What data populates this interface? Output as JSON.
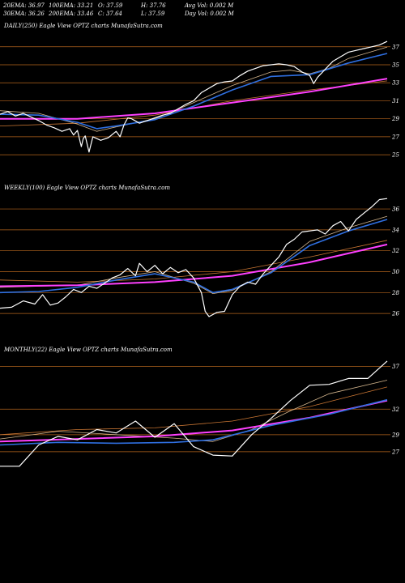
{
  "header": {
    "row1": [
      {
        "label": "20EMA: 36.97"
      },
      {
        "label": "100EMA: 33.21"
      },
      {
        "label": "O: 37.59"
      },
      {
        "label": "H: 37.76"
      },
      {
        "label": "Avg Vol: 0.002  M"
      }
    ],
    "row2": [
      {
        "label": "30EMA: 36.26"
      },
      {
        "label": "200EMA: 33.46"
      },
      {
        "label": "C: 37.64"
      },
      {
        "label": "L: 37.59"
      },
      {
        "label": "Day Vol: 0.002  M"
      }
    ]
  },
  "colors": {
    "background": "#000000",
    "price": "#ffffff",
    "grid": "#b5651d",
    "ema_short": "#d2b48c",
    "ema_blue": "#2f6fe0",
    "ema_long": "#ff40ff",
    "ema_orange": "#c87533"
  },
  "chart_data": [
    {
      "type": "line",
      "title": "DAILY(250) Eagle  View  OPTZ charts MunafaSutra.com",
      "yticks": [
        37,
        35,
        33,
        31,
        29,
        27,
        25
      ],
      "ylim": [
        24.2,
        38.6
      ],
      "series": [
        {
          "role": "price",
          "points": [
            [
              0,
              29.5
            ],
            [
              0.02,
              29.8
            ],
            [
              0.04,
              29.3
            ],
            [
              0.06,
              29.6
            ],
            [
              0.08,
              29.2
            ],
            [
              0.1,
              28.8
            ],
            [
              0.12,
              28.3
            ],
            [
              0.14,
              28.0
            ],
            [
              0.16,
              27.6
            ],
            [
              0.18,
              27.9
            ],
            [
              0.19,
              27.2
            ],
            [
              0.2,
              27.7
            ],
            [
              0.21,
              25.9
            ],
            [
              0.215,
              26.8
            ],
            [
              0.22,
              27.1
            ],
            [
              0.23,
              25.3
            ],
            [
              0.24,
              27.0
            ],
            [
              0.26,
              26.6
            ],
            [
              0.28,
              26.9
            ],
            [
              0.3,
              27.6
            ],
            [
              0.31,
              27.0
            ],
            [
              0.32,
              28.3
            ],
            [
              0.33,
              29.1
            ],
            [
              0.34,
              29.0
            ],
            [
              0.36,
              28.5
            ],
            [
              0.38,
              28.8
            ],
            [
              0.4,
              29.1
            ],
            [
              0.42,
              29.4
            ],
            [
              0.44,
              29.6
            ],
            [
              0.46,
              30.1
            ],
            [
              0.48,
              30.6
            ],
            [
              0.5,
              31.0
            ],
            [
              0.52,
              31.9
            ],
            [
              0.54,
              32.4
            ],
            [
              0.56,
              32.9
            ],
            [
              0.58,
              33.1
            ],
            [
              0.6,
              33.2
            ],
            [
              0.62,
              33.8
            ],
            [
              0.64,
              34.3
            ],
            [
              0.66,
              34.6
            ],
            [
              0.68,
              34.9
            ],
            [
              0.7,
              35.0
            ],
            [
              0.72,
              35.1
            ],
            [
              0.74,
              35.0
            ],
            [
              0.76,
              34.8
            ],
            [
              0.78,
              34.2
            ],
            [
              0.8,
              33.8
            ],
            [
              0.81,
              32.9
            ],
            [
              0.82,
              33.6
            ],
            [
              0.84,
              34.5
            ],
            [
              0.86,
              35.4
            ],
            [
              0.88,
              35.9
            ],
            [
              0.9,
              36.4
            ],
            [
              0.92,
              36.6
            ],
            [
              0.94,
              36.8
            ],
            [
              0.96,
              37.0
            ],
            [
              0.98,
              37.2
            ],
            [
              1.0,
              37.6
            ]
          ]
        },
        {
          "role": "ema_short",
          "points": [
            [
              0,
              29.9
            ],
            [
              0.1,
              29.6
            ],
            [
              0.2,
              28.4
            ],
            [
              0.25,
              27.6
            ],
            [
              0.3,
              28.1
            ],
            [
              0.4,
              29.0
            ],
            [
              0.5,
              30.8
            ],
            [
              0.6,
              32.7
            ],
            [
              0.7,
              34.2
            ],
            [
              0.75,
              34.4
            ],
            [
              0.8,
              34.0
            ],
            [
              0.85,
              34.6
            ],
            [
              0.9,
              35.7
            ],
            [
              1.0,
              36.97
            ]
          ]
        },
        {
          "role": "ema_blue",
          "points": [
            [
              0,
              29.5
            ],
            [
              0.1,
              29.4
            ],
            [
              0.2,
              28.6
            ],
            [
              0.25,
              27.9
            ],
            [
              0.3,
              28.2
            ],
            [
              0.4,
              28.9
            ],
            [
              0.5,
              30.4
            ],
            [
              0.6,
              32.2
            ],
            [
              0.7,
              33.7
            ],
            [
              0.8,
              33.9
            ],
            [
              0.9,
              35.2
            ],
            [
              1.0,
              36.26
            ]
          ]
        },
        {
          "role": "ema_long",
          "points": [
            [
              0,
              29.0
            ],
            [
              0.2,
              29.0
            ],
            [
              0.4,
              29.6
            ],
            [
              0.6,
              30.8
            ],
            [
              0.8,
              32.0
            ],
            [
              1.0,
              33.46
            ]
          ]
        },
        {
          "role": "ema_orange",
          "points": [
            [
              0,
              28.2
            ],
            [
              0.2,
              28.5
            ],
            [
              0.4,
              29.4
            ],
            [
              0.6,
              31.0
            ],
            [
              0.8,
              32.2
            ],
            [
              1.0,
              33.21
            ]
          ]
        }
      ]
    },
    {
      "type": "line",
      "title": "WEEKLY(100) Eagle  View  OPTZ charts MunafaSutra.com",
      "yticks": [
        36,
        34,
        32,
        30,
        28,
        26
      ],
      "ylim": [
        25.0,
        37.4
      ],
      "series": [
        {
          "role": "price",
          "points": [
            [
              0,
              26.5
            ],
            [
              0.03,
              26.6
            ],
            [
              0.06,
              27.2
            ],
            [
              0.09,
              26.9
            ],
            [
              0.11,
              27.8
            ],
            [
              0.13,
              26.8
            ],
            [
              0.15,
              27.0
            ],
            [
              0.17,
              27.6
            ],
            [
              0.19,
              28.3
            ],
            [
              0.21,
              28.0
            ],
            [
              0.23,
              28.6
            ],
            [
              0.25,
              28.4
            ],
            [
              0.27,
              28.9
            ],
            [
              0.29,
              29.4
            ],
            [
              0.31,
              29.7
            ],
            [
              0.33,
              30.3
            ],
            [
              0.35,
              29.6
            ],
            [
              0.36,
              30.8
            ],
            [
              0.38,
              30.0
            ],
            [
              0.4,
              30.6
            ],
            [
              0.42,
              29.8
            ],
            [
              0.44,
              30.4
            ],
            [
              0.46,
              29.9
            ],
            [
              0.48,
              30.2
            ],
            [
              0.5,
              29.4
            ],
            [
              0.52,
              28.0
            ],
            [
              0.53,
              26.2
            ],
            [
              0.54,
              25.7
            ],
            [
              0.56,
              26.1
            ],
            [
              0.58,
              26.2
            ],
            [
              0.6,
              27.8
            ],
            [
              0.62,
              28.6
            ],
            [
              0.64,
              29.0
            ],
            [
              0.66,
              28.8
            ],
            [
              0.68,
              29.8
            ],
            [
              0.7,
              30.6
            ],
            [
              0.72,
              31.4
            ],
            [
              0.74,
              32.6
            ],
            [
              0.76,
              33.1
            ],
            [
              0.78,
              33.8
            ],
            [
              0.8,
              33.9
            ],
            [
              0.82,
              34.0
            ],
            [
              0.84,
              33.6
            ],
            [
              0.86,
              34.4
            ],
            [
              0.88,
              34.8
            ],
            [
              0.9,
              33.9
            ],
            [
              0.92,
              35.0
            ],
            [
              0.94,
              35.6
            ],
            [
              0.96,
              36.2
            ],
            [
              0.98,
              36.9
            ],
            [
              1.0,
              37.0
            ]
          ]
        },
        {
          "role": "ema_short",
          "points": [
            [
              0,
              28.5
            ],
            [
              0.1,
              28.6
            ],
            [
              0.2,
              28.7
            ],
            [
              0.3,
              29.4
            ],
            [
              0.4,
              30.0
            ],
            [
              0.5,
              28.9
            ],
            [
              0.55,
              27.9
            ],
            [
              0.6,
              28.2
            ],
            [
              0.7,
              30.0
            ],
            [
              0.8,
              32.9
            ],
            [
              0.9,
              34.2
            ],
            [
              1.0,
              35.3
            ]
          ]
        },
        {
          "role": "ema_blue",
          "points": [
            [
              0,
              28.0
            ],
            [
              0.1,
              28.1
            ],
            [
              0.2,
              28.5
            ],
            [
              0.3,
              29.2
            ],
            [
              0.4,
              29.8
            ],
            [
              0.5,
              29.0
            ],
            [
              0.55,
              28.0
            ],
            [
              0.6,
              28.3
            ],
            [
              0.7,
              29.9
            ],
            [
              0.8,
              32.5
            ],
            [
              0.9,
              33.9
            ],
            [
              1.0,
              35.0
            ]
          ]
        },
        {
          "role": "ema_long",
          "points": [
            [
              0,
              28.6
            ],
            [
              0.2,
              28.7
            ],
            [
              0.4,
              29.0
            ],
            [
              0.6,
              29.6
            ],
            [
              0.8,
              30.9
            ],
            [
              1.0,
              32.6
            ]
          ]
        },
        {
          "role": "ema_orange",
          "points": [
            [
              0,
              29.2
            ],
            [
              0.2,
              29.0
            ],
            [
              0.4,
              29.3
            ],
            [
              0.6,
              30.0
            ],
            [
              0.8,
              31.4
            ],
            [
              1.0,
              33.0
            ]
          ]
        }
      ]
    },
    {
      "type": "line",
      "title": "MONTHLY(22) Eagle  View  OPTZ charts MunafaSutra.com",
      "yticks": [
        37,
        32,
        29,
        27
      ],
      "ylim": [
        23.0,
        38.2
      ],
      "series": [
        {
          "role": "price",
          "points": [
            [
              0,
              25.3
            ],
            [
              0.05,
              25.3
            ],
            [
              0.1,
              27.8
            ],
            [
              0.15,
              28.8
            ],
            [
              0.2,
              28.4
            ],
            [
              0.25,
              29.6
            ],
            [
              0.3,
              29.2
            ],
            [
              0.35,
              30.6
            ],
            [
              0.4,
              28.7
            ],
            [
              0.45,
              30.3
            ],
            [
              0.5,
              27.6
            ],
            [
              0.55,
              26.6
            ],
            [
              0.6,
              26.5
            ],
            [
              0.65,
              29.0
            ],
            [
              0.7,
              30.9
            ],
            [
              0.75,
              33.0
            ],
            [
              0.8,
              34.8
            ],
            [
              0.85,
              34.9
            ],
            [
              0.9,
              35.6
            ],
            [
              0.95,
              35.6
            ],
            [
              1.0,
              37.64
            ]
          ]
        },
        {
          "role": "ema_short",
          "points": [
            [
              0,
              28.5
            ],
            [
              0.15,
              29.4
            ],
            [
              0.3,
              29.0
            ],
            [
              0.45,
              28.6
            ],
            [
              0.55,
              28.2
            ],
            [
              0.65,
              29.6
            ],
            [
              0.75,
              31.8
            ],
            [
              0.85,
              33.8
            ],
            [
              1.0,
              35.4
            ]
          ]
        },
        {
          "role": "ema_blue",
          "points": [
            [
              0,
              27.8
            ],
            [
              0.15,
              28.1
            ],
            [
              0.3,
              28.0
            ],
            [
              0.45,
              28.1
            ],
            [
              0.55,
              28.4
            ],
            [
              0.7,
              30.1
            ],
            [
              0.85,
              31.4
            ],
            [
              1.0,
              33.1
            ]
          ]
        },
        {
          "role": "ema_long",
          "points": [
            [
              0,
              28.2
            ],
            [
              0.2,
              28.5
            ],
            [
              0.4,
              28.8
            ],
            [
              0.6,
              29.5
            ],
            [
              0.8,
              31.0
            ],
            [
              1.0,
              33.0
            ]
          ]
        },
        {
          "role": "ema_orange",
          "points": [
            [
              0,
              29.0
            ],
            [
              0.2,
              29.6
            ],
            [
              0.4,
              29.8
            ],
            [
              0.6,
              30.6
            ],
            [
              0.8,
              32.3
            ],
            [
              1.0,
              34.6
            ]
          ]
        }
      ]
    }
  ]
}
